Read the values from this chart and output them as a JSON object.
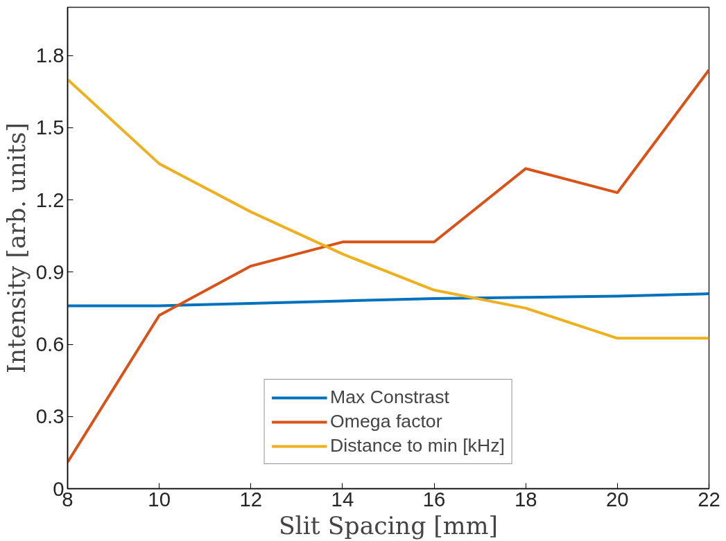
{
  "chart_data": {
    "type": "line",
    "xlabel": "Slit Spacing [mm]",
    "ylabel": "Intensity [arb. units]",
    "x": [
      8,
      10,
      12,
      14,
      16,
      18,
      20,
      22
    ],
    "series": [
      {
        "name": "Max Constrast",
        "color": "#0072bd",
        "values": [
          0.76,
          0.76,
          0.77,
          0.78,
          0.79,
          0.795,
          0.8,
          0.81
        ]
      },
      {
        "name": "Omega factor",
        "color": "#d95319",
        "values": [
          0.11,
          0.72,
          0.925,
          1.025,
          1.025,
          1.33,
          1.23,
          1.74
        ]
      },
      {
        "name": "Distance to min [kHz]",
        "color": "#edb120",
        "values": [
          1.7,
          1.35,
          1.15,
          0.975,
          0.825,
          0.75,
          0.625,
          0.625
        ]
      }
    ],
    "xlim": [
      8,
      22
    ],
    "ylim": [
      0,
      2
    ],
    "xticks": [
      8,
      10,
      12,
      14,
      16,
      18,
      20,
      22
    ],
    "yticks": [
      0,
      0.3,
      0.6,
      0.9,
      1.2,
      1.5,
      1.8
    ],
    "grid": false,
    "legend": "bottom",
    "line_style": "solid",
    "marker": "none"
  }
}
